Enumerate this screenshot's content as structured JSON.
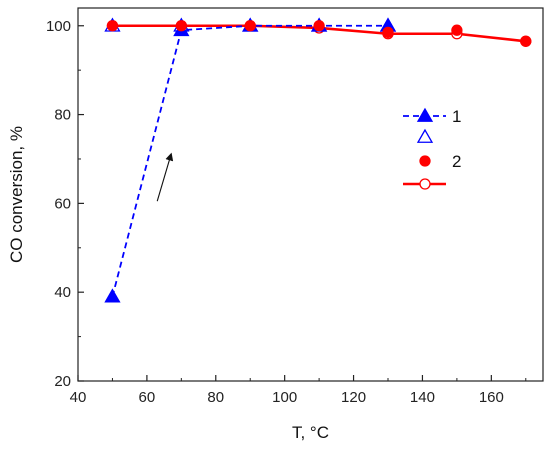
{
  "chart_data": {
    "type": "line",
    "xlabel": "T, °C",
    "ylabel": "CO conversion, %",
    "xlim": [
      40,
      175
    ],
    "ylim": [
      20,
      104
    ],
    "xticks": [
      40,
      60,
      80,
      100,
      120,
      140,
      160
    ],
    "yticks": [
      20,
      40,
      60,
      80,
      100
    ],
    "grid": false,
    "legend_position": "right",
    "series": [
      {
        "name": "1",
        "label_index": 0,
        "color": "#0000ff",
        "line_style": "dashed",
        "marker": "triangle-filled",
        "points": [
          [
            50,
            39
          ],
          [
            70,
            99
          ],
          [
            90,
            100
          ],
          [
            110,
            100
          ],
          [
            130,
            100
          ]
        ]
      },
      {
        "name": "",
        "color": "#0000ff",
        "line_style": "none",
        "marker": "triangle-open",
        "points": [
          [
            50,
            100
          ],
          [
            70,
            100
          ],
          [
            90,
            100
          ],
          [
            110,
            100
          ],
          [
            130,
            100
          ]
        ]
      },
      {
        "name": "2",
        "color": "#ff0000",
        "line_style": "none",
        "marker": "circle-filled",
        "points": [
          [
            50,
            100
          ],
          [
            70,
            100
          ],
          [
            90,
            100
          ],
          [
            110,
            100
          ],
          [
            130,
            98.5
          ],
          [
            150,
            99
          ],
          [
            170,
            96.5
          ]
        ]
      },
      {
        "name": "",
        "color": "#ff0000",
        "line_style": "solid",
        "marker": "circle-open",
        "points": [
          [
            50,
            100
          ],
          [
            70,
            100
          ],
          [
            90,
            100
          ],
          [
            110,
            99.5
          ],
          [
            130,
            98.2
          ],
          [
            150,
            98.2
          ],
          [
            170,
            96.5
          ]
        ]
      }
    ],
    "annotations": [
      {
        "type": "arrow",
        "from": [
          63,
          60.5
        ],
        "to": [
          67,
          71
        ]
      }
    ]
  }
}
